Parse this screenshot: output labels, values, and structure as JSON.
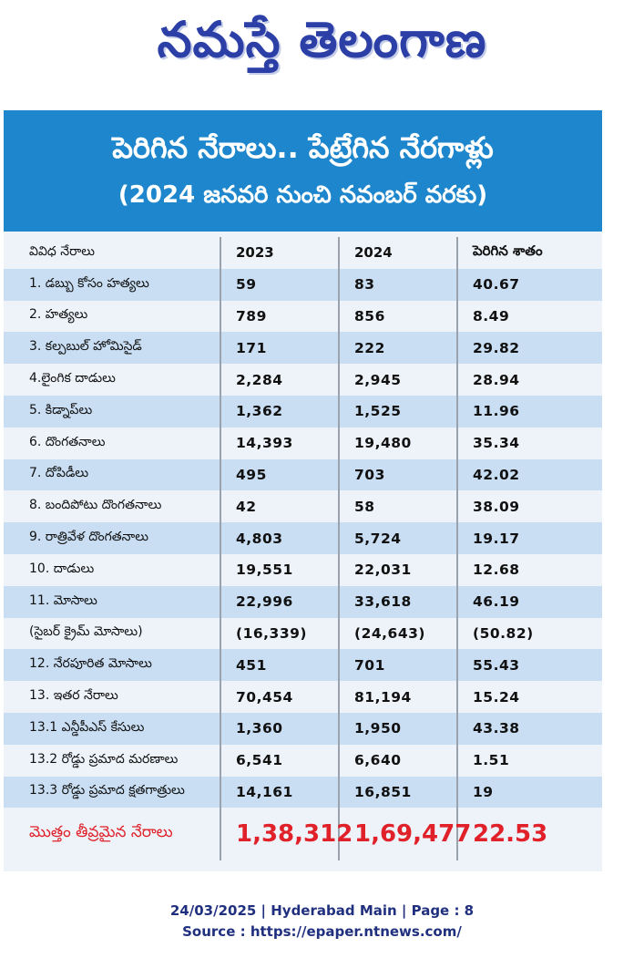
{
  "masthead": {
    "logo_text": "నమస్తే తెలంగాణ"
  },
  "headline": {
    "title": "పెరిగిన నేరాలు.. పేట్రేగిన నేరగాళ్లు",
    "subtitle": "(2024 జనవరి నుంచి నవంబర్ వరకు)"
  },
  "table": {
    "headers": [
      "వివిధ నేరాలు",
      "2023",
      "2024",
      "పెరిగిన శాతం"
    ],
    "rows": [
      [
        "1. డబ్బు కోసం హత్యలు",
        "59",
        "83",
        "40.67"
      ],
      [
        "2. హత్యలు",
        "789",
        "856",
        "8.49"
      ],
      [
        "3. కల్పబుల్ హోమిసైడ్",
        "171",
        "222",
        "29.82"
      ],
      [
        "4.లైంగిక దాడులు",
        "2,284",
        "2,945",
        "28.94"
      ],
      [
        "5. కిడ్నాప్‌లు",
        "1,362",
        "1,525",
        "11.96"
      ],
      [
        "6. దొంగతనాలు",
        "14,393",
        "19,480",
        "35.34"
      ],
      [
        "7. దోపిడీలు",
        "495",
        "703",
        "42.02"
      ],
      [
        "8. బందిపోటు దొంగతనాలు",
        "42",
        "58",
        "38.09"
      ],
      [
        "9. రాత్రివేళ దొంగతనాలు",
        "4,803",
        "5,724",
        "19.17"
      ],
      [
        "10. దాడులు",
        "19,551",
        "22,031",
        "12.68"
      ],
      [
        "11. మోసాలు",
        "22,996",
        "33,618",
        "46.19"
      ],
      [
        "(సైబర్ క్రైమ్ మోసాలు)",
        "(16,339)",
        "(24,643)",
        "(50.82)"
      ],
      [
        "12. నేరపూరిత మోసాలు",
        "451",
        "701",
        "55.43"
      ],
      [
        "13. ఇతర నేరాలు",
        "70,454",
        "81,194",
        "15.24"
      ],
      [
        "13.1 ఎన్డీపీఎస్ కేసులు",
        "1,360",
        "1,950",
        "43.38"
      ],
      [
        "13.2 రోడ్డు ప్రమాద మరణాలు",
        "6,541",
        "6,640",
        "1.51"
      ],
      [
        "13.3 రోడ్డు ప్రమాద క్షతగాత్రులు",
        "14,161",
        "16,851",
        "19"
      ]
    ],
    "total": [
      "మొత్తం తీవ్రమైన నేరాలు",
      "1,38,312",
      "1,69,477",
      "22.53"
    ]
  },
  "footer": {
    "line1": "24/03/2025 | Hyderabad Main | Page : 8",
    "line2": "Source : https://epaper.ntnews.com/"
  },
  "colors": {
    "header_blue": "#1d86cc",
    "row_blue": "#c9def3",
    "total_red": "#e0212a",
    "logo_blue": "#2b3fa6"
  }
}
